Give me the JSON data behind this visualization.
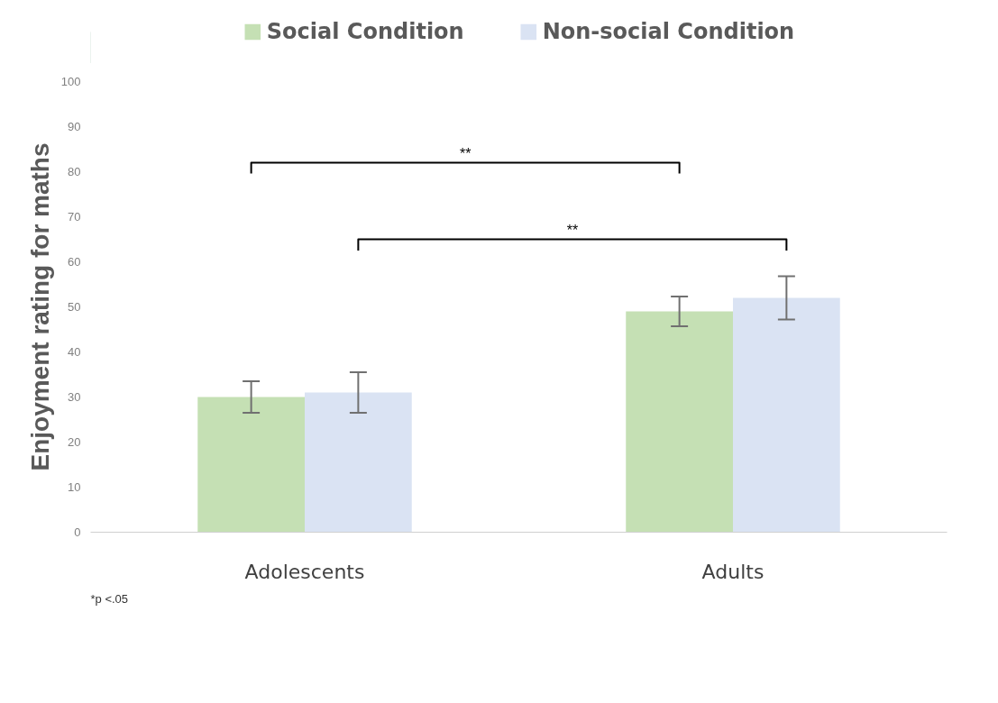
{
  "chart_data": {
    "type": "bar",
    "ylabel": "Enjoyment rating for maths",
    "categories": [
      "Adolescents",
      "Adults"
    ],
    "series": [
      {
        "name": "Social Condition",
        "color": "#c5e0b4",
        "values": [
          30,
          49
        ],
        "errors": [
          3.5,
          3.3
        ]
      },
      {
        "name": "Non-social Condition",
        "color": "#dae3f3",
        "values": [
          31,
          52
        ],
        "errors": [
          4.5,
          4.8
        ]
      }
    ],
    "ylim": [
      0,
      100
    ],
    "yticks": [
      0,
      10,
      20,
      30,
      40,
      50,
      60,
      70,
      80,
      90,
      100
    ],
    "grid": false,
    "legend": "top",
    "annotations": [
      "**",
      "**",
      "*p <.05"
    ]
  }
}
